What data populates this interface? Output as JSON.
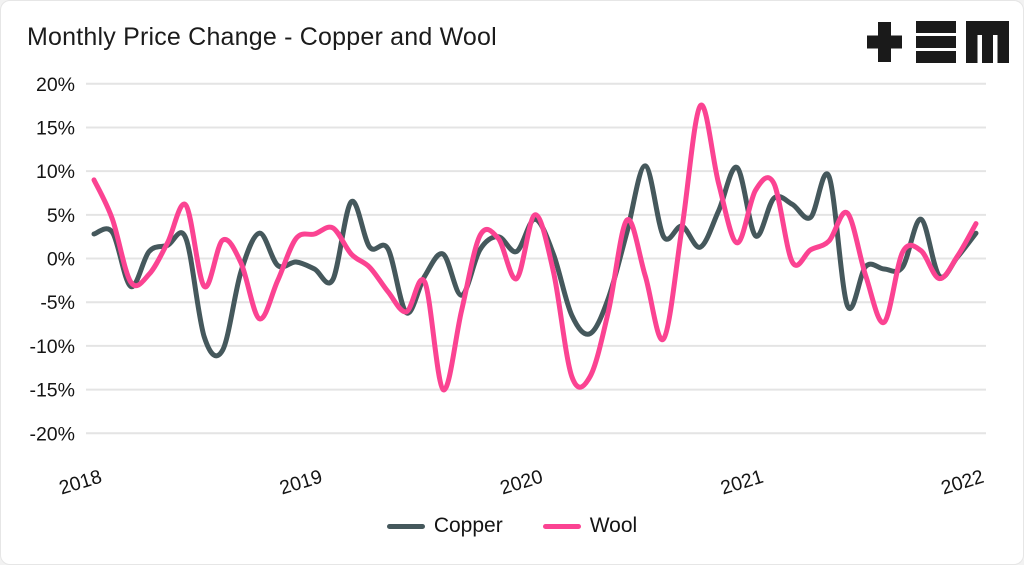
{
  "header": {
    "title": "Monthly Price Change - Copper and Wool",
    "logo": "tem-logo"
  },
  "colors": {
    "copper_line": "#45585c",
    "wool_line": "#fb4392",
    "gridline": "#e4e4e4",
    "axis_text": "#141414",
    "title_text": "#1b1b1b",
    "logo_black": "#1a1a1a",
    "card_background": "#ffffff",
    "card_border": "#e6e6e6"
  },
  "legend": {
    "items": [
      "Copper",
      "Wool"
    ]
  },
  "chart_data": {
    "type": "line",
    "title": "Monthly Price Change - Copper and Wool",
    "x_unit": "month",
    "y_unit": "percent",
    "ylim": [
      -20,
      20
    ],
    "y_tick_step": 5,
    "grid": "horizontal",
    "legend_position": "bottom-center",
    "x_tick_labels": [
      "2018",
      "2019",
      "2020",
      "2021",
      "2022"
    ],
    "y_tick_labels": [
      "20%",
      "15%",
      "10%",
      "5%",
      "0%",
      "-5%",
      "-10%",
      "-15%",
      "-20%"
    ],
    "months": [
      "Jan 2018",
      "Feb 2018",
      "Mar 2018",
      "Apr 2018",
      "May 2018",
      "Jun 2018",
      "Jul 2018",
      "Aug 2018",
      "Sep 2018",
      "Oct 2018",
      "Nov 2018",
      "Dec 2018",
      "Jan 2019",
      "Feb 2019",
      "Mar 2019",
      "Apr 2019",
      "May 2019",
      "Jun 2019",
      "Jul 2019",
      "Aug 2019",
      "Sep 2019",
      "Oct 2019",
      "Nov 2019",
      "Dec 2019",
      "Jan 2020",
      "Feb 2020",
      "Mar 2020",
      "Apr 2020",
      "May 2020",
      "Jun 2020",
      "Jul 2020",
      "Aug 2020",
      "Sep 2020",
      "Oct 2020",
      "Nov 2020",
      "Dec 2020",
      "Jan 2021",
      "Feb 2021",
      "Mar 2021",
      "Apr 2021",
      "May 2021",
      "Jun 2021",
      "Jul 2021",
      "Aug 2021",
      "Sep 2021",
      "Oct 2021",
      "Nov 2021",
      "Dec 2021",
      "Jan 2022"
    ],
    "series": [
      {
        "name": "Copper",
        "color": "#45585c",
        "values": [
          2.8,
          3.0,
          -3.2,
          0.8,
          1.5,
          2.3,
          -9.0,
          -10.5,
          -1.5,
          2.9,
          -0.8,
          -0.4,
          -1.2,
          -2.4,
          6.5,
          1.3,
          1.1,
          -6.2,
          -2.0,
          0.5,
          -4.2,
          1.0,
          2.5,
          0.8,
          4.5,
          0.5,
          -6.5,
          -8.6,
          -4.5,
          3.0,
          10.6,
          2.5,
          3.7,
          1.3,
          5.5,
          10.4,
          2.6,
          6.9,
          6.2,
          4.7,
          9.4,
          -5.4,
          -0.9,
          -1.2,
          -1.0,
          4.5,
          -2.0,
          0.2,
          2.9
        ]
      },
      {
        "name": "Wool",
        "color": "#fb4392",
        "values": [
          9.0,
          4.5,
          -2.7,
          -1.8,
          1.8,
          6.1,
          -3.2,
          2.1,
          -0.5,
          -6.9,
          -2.5,
          2.3,
          2.8,
          3.5,
          0.5,
          -1.0,
          -3.8,
          -6.1,
          -2.7,
          -15.0,
          -6.0,
          2.6,
          2.3,
          -2.3,
          5.0,
          -1.5,
          -13.5,
          -13.5,
          -6.0,
          4.4,
          -2.0,
          -9.2,
          3.5,
          17.5,
          8.5,
          1.8,
          7.8,
          8.6,
          -0.4,
          1.0,
          2.0,
          5.2,
          -2.0,
          -7.3,
          0.7,
          0.9,
          -2.3,
          0.3,
          4.0
        ]
      }
    ]
  }
}
